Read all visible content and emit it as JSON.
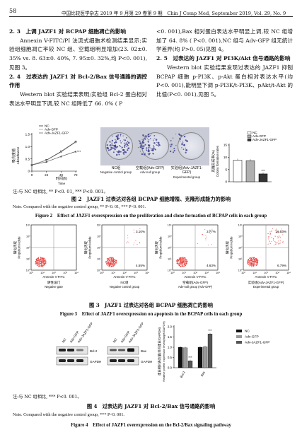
{
  "header": {
    "page_number": "58",
    "journal": "中国比较医学杂志 2019 年 9 月第 29 卷第 9 期　Chin J Comp Med, September 2019, Vol. 29, No. 9"
  },
  "left_col": {
    "h23": "2. 3　上调 JAZF1 对 BCPAP 细胞凋亡的影响",
    "p1": "Annexin V-FITC/PI 法流式细胞术检测结果显示;实验组细胞凋亡率较 NC 组、空载组明显增加(23. 02±0. 35% vs. 8. 63±0. 40%, 7. 95±0. 32%,均 P<0. 001),见图 3。",
    "h24": "2. 4　过表达的 JAZF1 对 Bcl-2/Bax 信号通路的调控作用",
    "p2": "Western blot 实验结果表明;实验组 Bcl-2 蛋白相对表达水平明显下调,较 NC 组降低了 66. 0% ( P"
  },
  "right_col": {
    "p1": "<0. 001),Bax 相对蛋白表达水平明显上调,较 NC 组增加了 64. 8% ( P<0. 001),NC 组与 Adv-GFP 组无统计学差异(均 P>0. 05)见图 4。",
    "h25": "2. 5　过表达的 JAZF1 对 PI3K/Akt 信号通路的影响",
    "p2": "Western blot 实验结果发现过表达的 JAZF1 抑制 BCPAP 细胞 p-PI3K、p-Akt 蛋白相对表达水平(均 P<0. 001),能明显下调 p-PI3K/t-PI3K、pAkt/t-Akt 的比值(P<0. 001),见图 5。"
  },
  "fig2": {
    "growth": {
      "ylabel_zh": "吸光度值",
      "ylabel_en": "Absorbance",
      "xlabel_zh": "时间(h)",
      "xlabel_en": "Time",
      "yticks": [
        "0",
        "0.5",
        "1.0",
        "1.5"
      ],
      "xticks": [
        "0",
        "24",
        "48",
        "72"
      ],
      "legend": [
        "NC",
        "Adv-GFP",
        "Adv-JAZF1-GFP"
      ],
      "star_label": "***"
    },
    "plates": [
      {
        "zh": "NC组",
        "en": "Negative control group"
      },
      {
        "zh": "空载组(Adv-GFP)",
        "en": "Adv-null group"
      },
      {
        "zh": "实验组(Adv-JAZF1-GFP)",
        "en": "Experimental group"
      }
    ],
    "clone": {
      "ylabel_zh": "克隆形成率(%)",
      "ylabel_en": "Colony formation rates",
      "yticks": [
        "0",
        "5",
        "10",
        "15"
      ],
      "legend": [
        "NC",
        "Adv-GFP",
        "Adv-JAZF1-GFP"
      ],
      "star_label": "***"
    },
    "note_zh": "注:与 NC 组相比, ** P<0. 01, *** P<0. 001。",
    "cap_zh": "图 2　JAZF1 过表达对各组 BCPAP 细胞增殖、克隆形成能力的影响",
    "note_en": "Note. Compared with the negative control group, ** P<0. 01, *** P<0. 001.",
    "cap_en": "Figure 2　Effect of JAZF1 overexpression on the proliferation and clone formation of BCPAP cells in each group"
  },
  "fig3": {
    "panels": [
      {
        "q2": "",
        "q4": "",
        "zh": "阴性设门",
        "en": "Negative gate"
      },
      {
        "q2": "3.10%",
        "q4": "4.55%",
        "zh": "NC组",
        "en": "Negative control group"
      },
      {
        "q2": "3.77%",
        "q4": "4.63%",
        "zh": "空载组(Adv-GFP)",
        "en": "Adv-null group (Adv-GFP)"
      },
      {
        "q2": "16.53%",
        "q4": "6.79%",
        "zh": "实验组(Adv-JAZF1-GFP)",
        "en": "Experimental group"
      }
    ],
    "ylabel_zh": "碘化丙啶",
    "ylabel_en": "Propidium iodide",
    "xlabel": "Annexin V-FITC",
    "ticks": [
      "10⁰",
      "10¹",
      "10²",
      "10³",
      "10⁴"
    ],
    "cap_zh": "图 3　JAZF1 过表达对各组 BCPAP 细胞凋亡的影响",
    "cap_en": "Figure 3　Effect of JAZF1 overexpression on apoptosis in the BCPAP cells in each group"
  },
  "fig4": {
    "blot_cols": [
      "NC",
      "Adv-GFP",
      "Adv-JAZF1-GFP"
    ],
    "blot_rows": [
      "Bcl-2",
      "GAPDH",
      "Bax",
      "GAPDH"
    ],
    "ylabel_zh": "蛋白相对表达量(目的蛋白/GAPDH)",
    "ylabel_en": "Relative protein expression levels(target/GAPDH)",
    "yticks": [
      "0.0",
      "0.5",
      "1.0",
      "1.5",
      "2.0"
    ],
    "legend": [
      "NC",
      "Adv-GFP",
      "Adv-JAZF1-GFP"
    ],
    "star_label": "***",
    "note_zh": "注:与 NC 组相比, *** P<0. 001。",
    "cap_zh": "图 4　过表达的 JAZF1 对 Bcl-2/Bax 信号通路的影响",
    "note_en": "Note. Compared with the negative control group, *** P<0. 001.",
    "cap_en": "Figure 4　Effect of JAZF1 overexpression on the Bcl-2/Bax signaling pathway"
  },
  "colors": {
    "nc": "#111111",
    "gfp": "#9a9a9a",
    "jazf": "#555555",
    "gate": "#e53935"
  },
  "chart_data": [
    {
      "type": "line",
      "xlabel": "时间(h) Time",
      "ylabel": "吸光度值 Absorbance",
      "x": [
        0,
        24,
        48,
        72
      ],
      "ylim": [
        0,
        1.5
      ],
      "series": [
        {
          "name": "NC",
          "values": [
            0.25,
            0.45,
            0.8,
            1.2
          ]
        },
        {
          "name": "Adv-GFP",
          "values": [
            0.25,
            0.44,
            0.78,
            1.18
          ]
        },
        {
          "name": "Adv-JAZF1-GFP",
          "values": [
            0.25,
            0.38,
            0.6,
            0.8
          ]
        }
      ]
    },
    {
      "type": "bar",
      "ylabel": "克隆形成率(%) Colony formation rates",
      "categories": [
        "NC",
        "Adv-GFP",
        "Adv-JAZF1-GFP"
      ],
      "values": [
        8.8,
        8.6,
        3.2
      ],
      "ylim": [
        0,
        15
      ]
    },
    {
      "type": "bar",
      "ylabel": "蛋白相对表达量(目的蛋白/GAPDH) Relative protein expression levels(target/GAPDH)",
      "categories": [
        "Bcl-2",
        "Bax"
      ],
      "series": [
        {
          "name": "NC",
          "values": [
            1.0,
            1.0
          ]
        },
        {
          "name": "Adv-GFP",
          "values": [
            0.97,
            1.02
          ]
        },
        {
          "name": "Adv-JAZF1-GFP",
          "values": [
            0.34,
            1.65
          ]
        }
      ],
      "ylim": [
        0,
        2.0
      ]
    }
  ]
}
